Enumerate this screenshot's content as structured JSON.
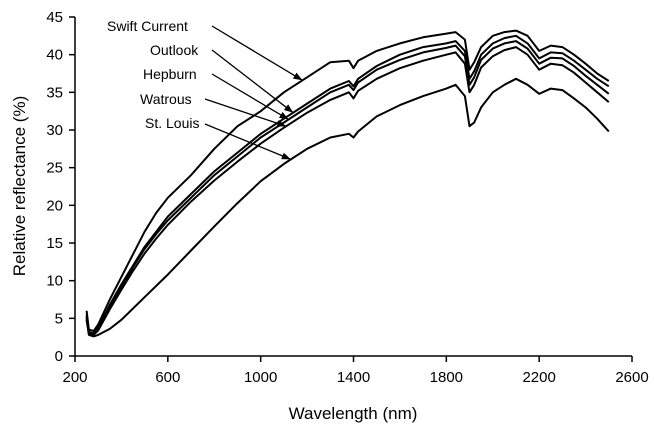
{
  "chart_data": {
    "type": "line",
    "title": "",
    "xlabel": "Wavelength (nm)",
    "ylabel": "Relative reflectance (%)",
    "xlim": [
      200,
      2600
    ],
    "ylim": [
      0,
      45
    ],
    "xticks": [
      200,
      600,
      1000,
      1400,
      1800,
      2200,
      2600
    ],
    "yticks": [
      0,
      5,
      10,
      15,
      20,
      25,
      30,
      35,
      40,
      45
    ],
    "grid": false,
    "legend": "inline labels with arrows, upper-left",
    "series": [
      {
        "name": "Swift Current",
        "x": [
          250,
          260,
          280,
          300,
          350,
          400,
          450,
          500,
          550,
          600,
          700,
          800,
          900,
          1000,
          1100,
          1200,
          1300,
          1380,
          1400,
          1420,
          1500,
          1600,
          1700,
          1800,
          1840,
          1880,
          1900,
          1920,
          1950,
          2000,
          2050,
          2100,
          2150,
          2200,
          2250,
          2300,
          2350,
          2400,
          2450,
          2500
        ],
        "y": [
          6.0,
          3.5,
          3.3,
          4.2,
          7.5,
          10.5,
          13.5,
          16.5,
          19.0,
          21.0,
          24.0,
          27.5,
          30.5,
          32.5,
          35.0,
          37.0,
          39.0,
          39.2,
          38.2,
          39.2,
          40.5,
          41.5,
          42.3,
          42.8,
          43.0,
          42.0,
          38.0,
          39.0,
          41.0,
          42.5,
          43.0,
          43.2,
          42.5,
          40.5,
          41.2,
          41.0,
          40.0,
          38.8,
          37.5,
          36.5
        ]
      },
      {
        "name": "Outlook",
        "x": [
          250,
          260,
          280,
          300,
          350,
          400,
          450,
          500,
          550,
          600,
          700,
          800,
          900,
          1000,
          1100,
          1200,
          1300,
          1380,
          1400,
          1420,
          1500,
          1600,
          1700,
          1800,
          1840,
          1880,
          1900,
          1920,
          1950,
          2000,
          2050,
          2100,
          2150,
          2200,
          2250,
          2300,
          2350,
          2400,
          2450,
          2500
        ],
        "y": [
          5.5,
          3.2,
          3.0,
          3.8,
          6.8,
          9.5,
          12.0,
          14.5,
          16.5,
          18.5,
          21.5,
          24.5,
          27.0,
          29.5,
          31.5,
          33.5,
          35.5,
          36.5,
          35.8,
          36.8,
          38.5,
          40.0,
          41.0,
          41.5,
          41.8,
          40.5,
          36.8,
          37.8,
          40.0,
          41.5,
          42.2,
          42.5,
          41.5,
          39.5,
          40.3,
          40.2,
          39.2,
          38.0,
          36.8,
          35.8
        ]
      },
      {
        "name": "Hepburn",
        "x": [
          250,
          260,
          280,
          300,
          350,
          400,
          450,
          500,
          550,
          600,
          700,
          800,
          900,
          1000,
          1100,
          1200,
          1300,
          1380,
          1400,
          1420,
          1500,
          1600,
          1700,
          1800,
          1840,
          1880,
          1900,
          1920,
          1950,
          2000,
          2050,
          2100,
          2150,
          2200,
          2250,
          2300,
          2350,
          2400,
          2450,
          2500
        ],
        "y": [
          5.2,
          3.0,
          2.9,
          3.6,
          6.5,
          9.2,
          11.8,
          14.2,
          16.2,
          18.0,
          21.0,
          24.0,
          26.5,
          29.0,
          31.0,
          33.0,
          35.0,
          36.0,
          35.3,
          36.3,
          38.0,
          39.3,
          40.3,
          40.9,
          41.2,
          39.8,
          36.0,
          37.0,
          39.3,
          40.8,
          41.5,
          41.8,
          40.8,
          38.8,
          39.6,
          39.5,
          38.5,
          37.2,
          36.0,
          34.8
        ]
      },
      {
        "name": "Watrous",
        "x": [
          250,
          260,
          280,
          300,
          350,
          400,
          450,
          500,
          550,
          600,
          700,
          800,
          900,
          1000,
          1100,
          1200,
          1300,
          1380,
          1400,
          1420,
          1500,
          1600,
          1700,
          1800,
          1840,
          1880,
          1900,
          1920,
          1950,
          2000,
          2050,
          2100,
          2150,
          2200,
          2250,
          2300,
          2350,
          2400,
          2450,
          2500
        ],
        "y": [
          5.0,
          2.9,
          2.8,
          3.4,
          6.2,
          8.8,
          11.3,
          13.6,
          15.6,
          17.4,
          20.5,
          23.3,
          25.8,
          28.2,
          30.3,
          32.3,
          34.0,
          35.0,
          34.2,
          35.2,
          36.8,
          38.2,
          39.2,
          40.0,
          40.3,
          38.8,
          35.0,
          36.0,
          38.3,
          39.8,
          40.6,
          41.0,
          40.0,
          38.0,
          38.8,
          38.6,
          37.6,
          36.3,
          35.0,
          33.7
        ]
      },
      {
        "name": "St. Louis",
        "x": [
          250,
          260,
          280,
          300,
          350,
          400,
          450,
          500,
          550,
          600,
          700,
          800,
          900,
          1000,
          1100,
          1200,
          1300,
          1380,
          1400,
          1420,
          1500,
          1600,
          1700,
          1800,
          1840,
          1880,
          1900,
          1920,
          1950,
          2000,
          2050,
          2100,
          2150,
          2200,
          2250,
          2300,
          2350,
          2400,
          2450,
          2500
        ],
        "y": [
          4.8,
          2.8,
          2.6,
          2.8,
          3.6,
          4.8,
          6.3,
          7.8,
          9.3,
          10.8,
          14.0,
          17.2,
          20.3,
          23.2,
          25.5,
          27.5,
          29.0,
          29.5,
          29.0,
          29.8,
          31.8,
          33.3,
          34.5,
          35.5,
          36.0,
          34.5,
          30.5,
          31.0,
          33.0,
          35.0,
          36.0,
          36.8,
          36.0,
          34.8,
          35.5,
          35.3,
          34.2,
          33.0,
          31.5,
          29.8
        ]
      }
    ],
    "annotations": [
      "Swift Current",
      "Outlook",
      "Hepburn",
      "Watrous",
      "St. Louis"
    ]
  }
}
